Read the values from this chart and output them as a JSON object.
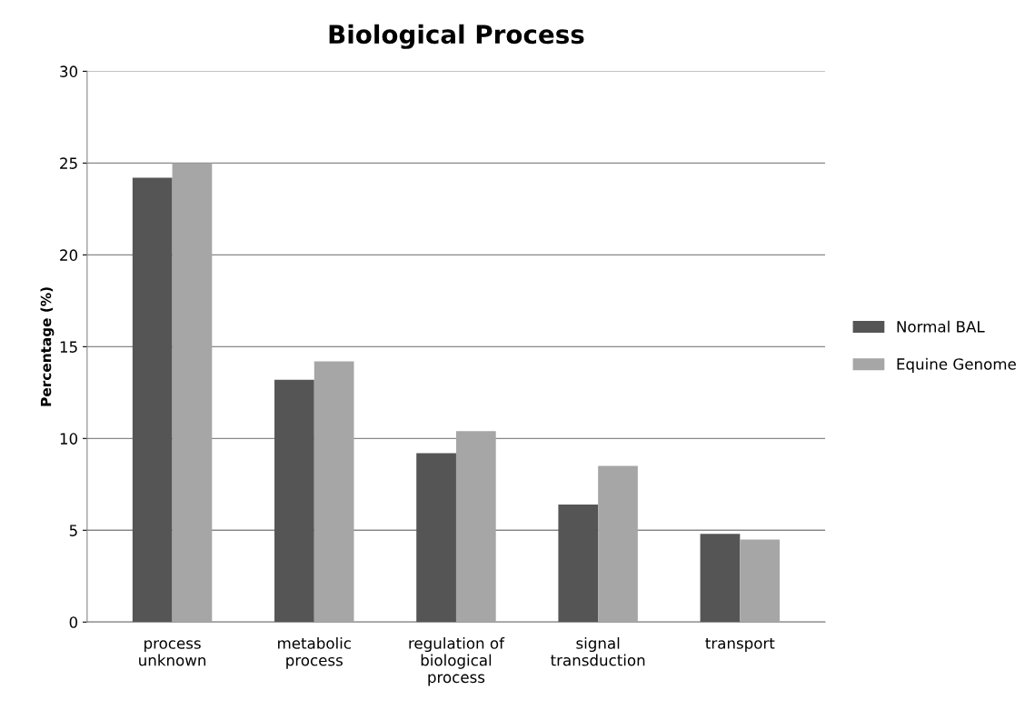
{
  "chart_data": {
    "type": "bar",
    "title": "Biological Process",
    "ylabel": "Percentage (%)",
    "categories": [
      "process\nunknown",
      "metabolic\nprocess",
      "regulation of\nbiological\nprocess",
      "signal\ntransduction",
      "transport"
    ],
    "series": [
      {
        "name": "Normal BAL",
        "color": "#555555",
        "values": [
          24.2,
          13.2,
          9.2,
          6.4,
          4.8
        ]
      },
      {
        "name": "Equine Genome",
        "color": "#a6a6a6",
        "values": [
          25.0,
          14.2,
          10.4,
          8.5,
          4.5
        ]
      }
    ],
    "ylim": [
      0,
      30
    ],
    "yticks": [
      0,
      5,
      10,
      15,
      20,
      25,
      30
    ],
    "grid": "y",
    "legend": "right"
  }
}
